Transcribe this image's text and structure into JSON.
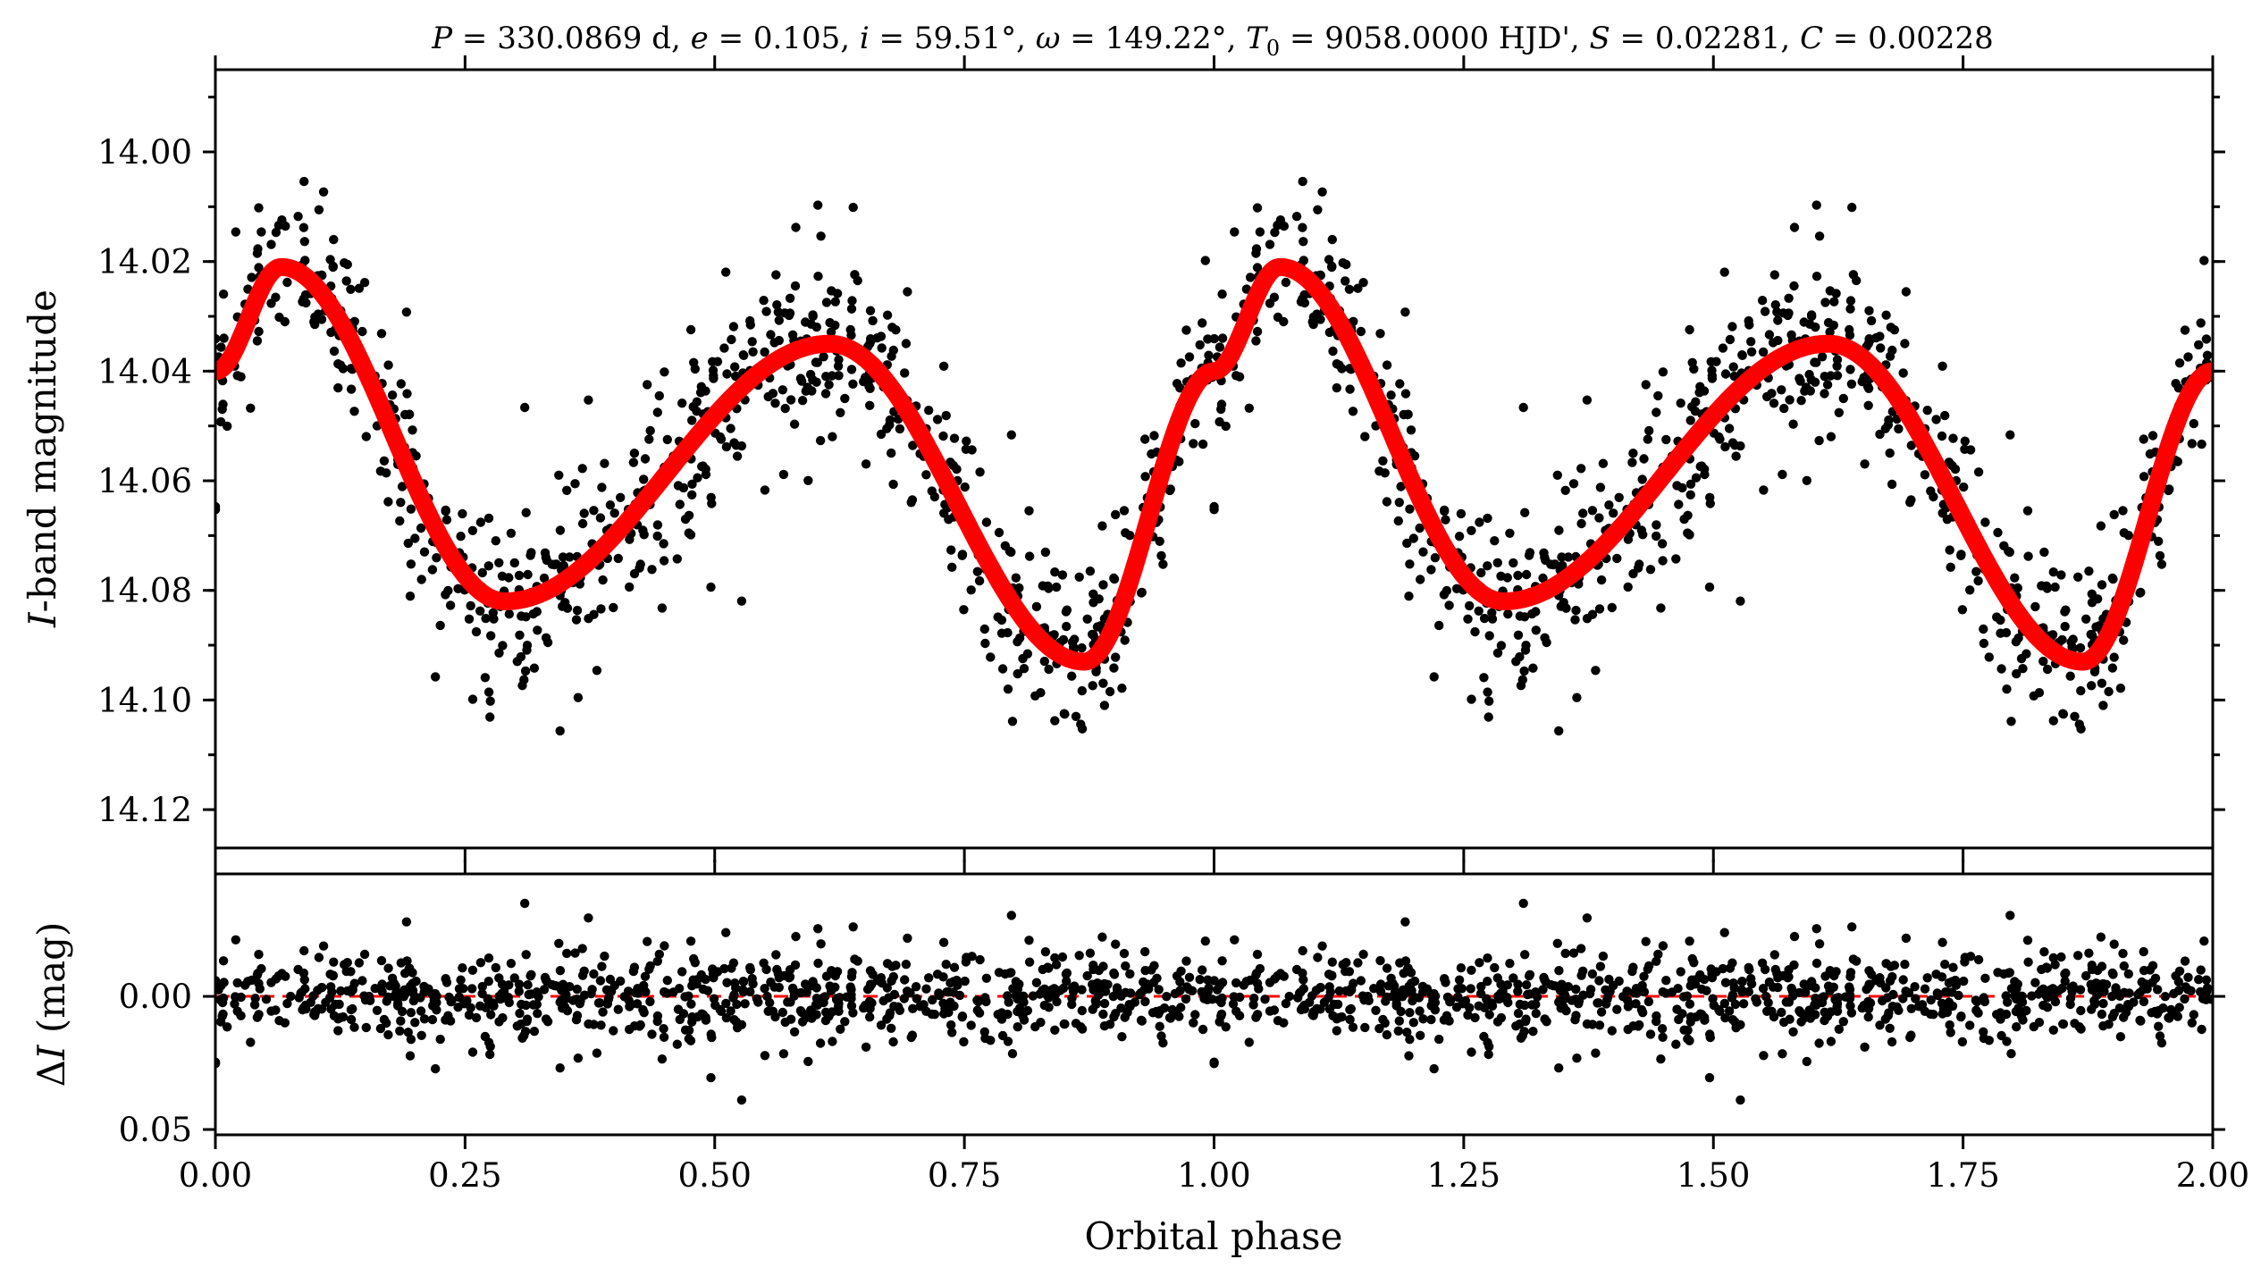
{
  "chart_data": [
    {
      "panel": "top",
      "type": "scatter",
      "title": "P = 330.0869 d, e = 0.105, i = 59.51°, ω = 149.22°, T₀ = 9058.0000 HJD', S = 0.02281, C = 0.00228",
      "xlabel": "",
      "ylabel": "I-band magnitude",
      "xlim": [
        0.0,
        2.0
      ],
      "ylim": [
        14.127,
        13.985
      ],
      "y_inverted": true,
      "xticks": [
        0.0,
        0.25,
        0.5,
        0.75,
        1.0,
        1.25,
        1.5,
        1.75,
        2.0
      ],
      "yticks": [
        14.0,
        14.02,
        14.04,
        14.06,
        14.08,
        14.1,
        14.12
      ],
      "ytick_labels": [
        "14.00",
        "14.02",
        "14.04",
        "14.06",
        "14.08",
        "14.10",
        "14.12"
      ],
      "model_curve": {
        "color": "#ff0000",
        "description_points": {
          "phase": [
            0.0,
            0.066,
            0.29,
            0.615,
            0.87,
            1.0,
            1.066,
            1.29,
            1.615,
            1.87,
            2.0
          ],
          "mag": [
            14.04,
            14.021,
            14.082,
            14.035,
            14.093,
            14.04,
            14.021,
            14.082,
            14.035,
            14.093,
            14.04
          ]
        }
      },
      "points_color": "#000000",
      "points_count_per_cycle": 800,
      "point_scatter_sigma_mag": 0.011
    },
    {
      "panel": "bottom",
      "type": "scatter",
      "xlabel": "Orbital phase",
      "ylabel": "ΔI (mag)",
      "xlim": [
        0.0,
        2.0
      ],
      "ylim": [
        0.052,
        -0.046
      ],
      "y_inverted": true,
      "xticks": [
        0.0,
        0.25,
        0.5,
        0.75,
        1.0,
        1.25,
        1.5,
        1.75,
        2.0
      ],
      "xtick_labels": [
        "0.00",
        "0.25",
        "0.50",
        "0.75",
        "1.00",
        "1.25",
        "1.50",
        "1.75",
        "2.00"
      ],
      "yticks": [
        0.0,
        0.05
      ],
      "ytick_labels": [
        "0.00",
        "0.05"
      ],
      "reference_line": {
        "y": 0.0,
        "style": "dashed",
        "color": "#ff0000"
      },
      "points_color": "#000000"
    }
  ],
  "title_parts": {
    "p_sym": "P",
    "p_val": " = 330.0869 d, ",
    "e_sym": "e",
    "e_val": " = 0.105, ",
    "i_sym": "i",
    "i_val": " = 59.51°, ",
    "w_sym": "ω",
    "w_val": " = 149.22°, ",
    "t_sym": "T",
    "t_sub": "0",
    "t_val": " = 9058.0000 HJD', ",
    "s_sym": "S",
    "s_val": " = 0.02281, ",
    "c_sym": "C",
    "c_val": " = 0.00228"
  },
  "top_ylabel_parts": {
    "sym": "I",
    "rest": "-band magnitude"
  },
  "bottom_ylabel_parts": {
    "delta": "Δ",
    "sym": "I",
    "rest": " (mag)"
  },
  "colors": {
    "model": "#ff0000",
    "points": "#000000",
    "axes": "#000000"
  }
}
